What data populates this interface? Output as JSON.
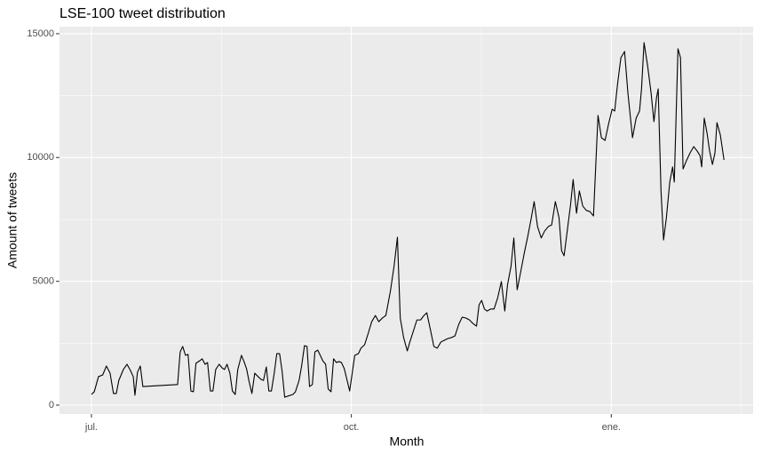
{
  "chart_data": {
    "type": "line",
    "title": "LSE-100 tweet distribution",
    "x_label": "Month",
    "y_label": "Amount of tweets",
    "color": "#000000",
    "grid": true,
    "x": [
      0,
      1,
      2.5,
      4,
      5.3,
      6.6,
      7.8,
      8.8,
      9.7,
      11.3,
      12.6,
      13.8,
      14.8,
      15.4,
      16.3,
      17.3,
      18.2,
      30.5,
      31.4,
      32.3,
      33.3,
      34.2,
      35.2,
      36.1,
      37,
      38.3,
      39.2,
      40.2,
      41.1,
      42.1,
      43,
      44,
      45.2,
      46.2,
      47.1,
      48,
      49,
      49.9,
      50.9,
      51.8,
      53.1,
      54,
      54.9,
      55.9,
      56.8,
      57.8,
      59,
      60,
      60.9,
      61.9,
      62.8,
      63.7,
      64.7,
      65.6,
      66.6,
      67.5,
      68.4,
      69.4,
      71.3,
      72.2,
      73.5,
      74.4,
      75.4,
      76.3,
      77.2,
      78.2,
      79.1,
      80.1,
      81,
      81.9,
      82.9,
      83.8,
      84.8,
      85.7,
      86.7,
      87.6,
      88.5,
      89.5,
      91.4,
      93.2,
      94.5,
      95.4,
      96.7,
      98,
      99.2,
      100.5,
      101.7,
      103,
      104.2,
      105.8,
      107.1,
      108.3,
      109.3,
      110.5,
      111.8,
      112.7,
      114,
      115.2,
      116.5,
      117.7,
      118.7,
      119.9,
      121.2,
      122.4,
      123.7,
      124.9,
      126.2,
      127.5,
      128.7,
      130,
      131.2,
      132.5,
      133.8,
      135,
      136.3,
      137.2,
      138.1,
      139.1,
      140,
      141.3,
      142.5,
      143.8,
      145.1,
      146.3,
      147.3,
      148.5,
      149.5,
      150.7,
      152,
      153.2,
      154.5,
      155.7,
      156.7,
      157.9,
      159.2,
      160.4,
      161.7,
      162.9,
      164.2,
      165.5,
      166.4,
      167.3,
      168.6,
      169.6,
      170.5,
      171.7,
      172.7,
      173.9,
      175.2,
      176.4,
      177.7,
      179.3,
      180.5,
      181.8,
      183,
      184.3,
      185.2,
      186.2,
      187.4,
      188.7,
      189.9,
      191.5,
      192.8,
      194,
      194.7,
      195.6,
      196.9,
      198.1,
      199.1,
      200,
      200.6,
      201.6,
      202.5,
      203.5,
      204.7,
      205.7,
      206.3,
      207.6,
      208.5,
      209.4,
      210.7,
      211.9,
      213.2,
      214.4,
      215.4,
      216,
      216.9,
      217.9,
      218.8,
      219.8,
      220.7,
      221.4,
      222.6,
      223.9
    ],
    "values": [
      430,
      540,
      1150,
      1220,
      1580,
      1290,
      470,
      470,
      1000,
      1440,
      1650,
      1400,
      1150,
      400,
      1330,
      1580,
      750,
      830,
      2150,
      2370,
      2010,
      2050,
      570,
      540,
      1690,
      1790,
      1870,
      1650,
      1720,
      570,
      570,
      1440,
      1650,
      1510,
      1440,
      1650,
      1290,
      570,
      430,
      1440,
      2010,
      1760,
      1470,
      900,
      470,
      1290,
      1150,
      1040,
      1000,
      1540,
      570,
      570,
      1290,
      2080,
      2080,
      1360,
      320,
      360,
      430,
      540,
      1000,
      1580,
      2400,
      2370,
      750,
      830,
      2150,
      2220,
      2010,
      1790,
      1650,
      650,
      540,
      1870,
      1720,
      1760,
      1720,
      1470,
      570,
      2010,
      2080,
      2300,
      2440,
      2910,
      3370,
      3620,
      3370,
      3520,
      3620,
      4590,
      5600,
      6780,
      3520,
      2730,
      2190,
      2550,
      3010,
      3440,
      3440,
      3620,
      3730,
      3090,
      2370,
      2300,
      2550,
      2620,
      2690,
      2730,
      2800,
      3260,
      3550,
      3520,
      3440,
      3300,
      3190,
      4050,
      4230,
      3880,
      3800,
      3880,
      3880,
      4340,
      4990,
      3800,
      4880,
      5600,
      6750,
      4660,
      5420,
      6140,
      6850,
      7570,
      8220,
      7210,
      6750,
      7030,
      7210,
      7280,
      8220,
      7570,
      6240,
      6030,
      7210,
      8110,
      9110,
      7750,
      8650,
      8040,
      7860,
      7820,
      7640,
      11700,
      10800,
      10690,
      11340,
      11950,
      11880,
      12950,
      14030,
      14280,
      12590,
      10800,
      11590,
      11880,
      12770,
      14640,
      13670,
      12590,
      11450,
      12410,
      12770,
      8650,
      6670,
      7570,
      9010,
      9620,
      9010,
      14390,
      14030,
      9540,
      9900,
      10190,
      10440,
      10260,
      10080,
      9620,
      11590,
      10980,
      10260,
      9720,
      10190,
      11410,
      10910,
      9900
    ],
    "xlim": [
      -11.3,
      234.2
    ],
    "xticks": [
      {
        "value": 0,
        "label": "jul."
      },
      {
        "value": 92,
        "label": "oct."
      },
      {
        "value": 184,
        "label": "ene."
      }
    ],
    "xminor": [
      46,
      138,
      230
    ],
    "ylim": [
      -359,
      15285
    ],
    "yticks": [
      0,
      5000,
      10000,
      15000
    ],
    "yminor": [
      2500,
      7500,
      12500
    ]
  }
}
